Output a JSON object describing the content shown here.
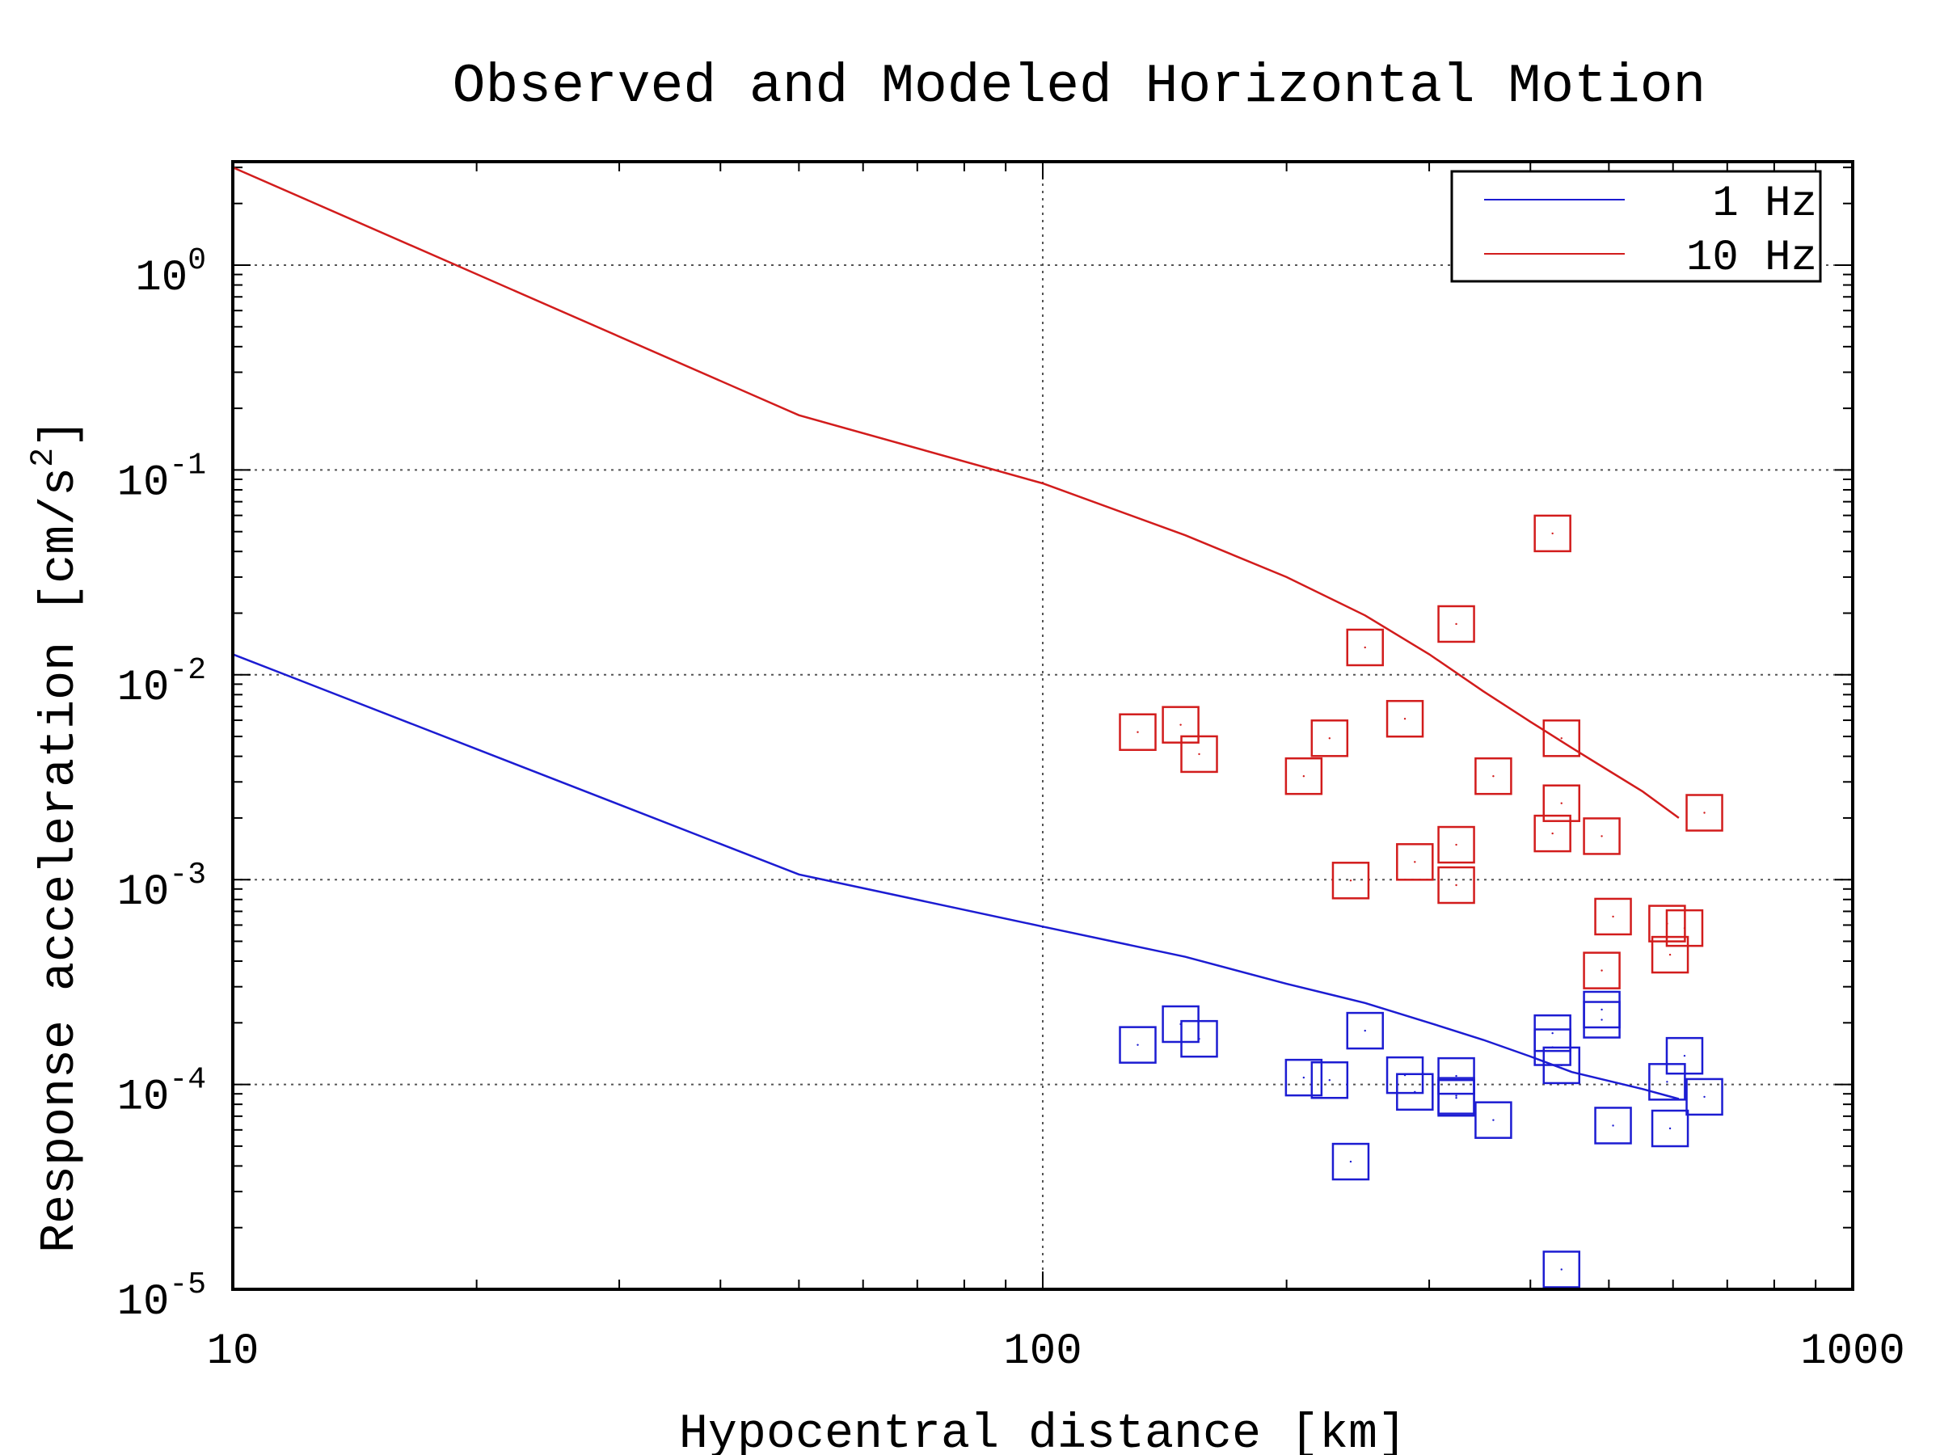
{
  "chart_data": {
    "type": "line",
    "title": "Observed and Modeled Horizontal Motion",
    "xlabel": "Hypocentral distance [km]",
    "ylabel": "Response acceleration [cm/s",
    "ylabel_sup": "2",
    "ylabel_suffix": "]",
    "xscale": "log",
    "yscale": "log",
    "xlim": [
      10,
      1000
    ],
    "ylim": [
      1e-05,
      3.2
    ],
    "x_ticks": [
      10,
      100,
      1000
    ],
    "x_tick_labels": [
      "10",
      "100",
      "1000"
    ],
    "y_ticks": [
      1e-05,
      0.0001,
      0.001,
      0.01,
      0.1,
      1
    ],
    "y_tick_base": "10",
    "y_tick_exponents": [
      "-5",
      "-4",
      "-3",
      "-2",
      "-1",
      "0"
    ],
    "grid": true,
    "legend_position": "top-right",
    "series": [
      {
        "name": "1 Hz",
        "color": "#1c1cd2",
        "line": [
          [
            10,
            0.0126
          ],
          [
            50,
            0.00106
          ],
          [
            100,
            0.00059
          ],
          [
            150,
            0.00042
          ],
          [
            200,
            0.00031
          ],
          [
            250,
            0.00025
          ],
          [
            300,
            0.0002
          ],
          [
            350,
            0.000165
          ],
          [
            400,
            0.000137
          ],
          [
            450,
            0.000115
          ],
          [
            550,
            9.5e-05
          ],
          [
            610,
            8.5e-05
          ]
        ],
        "observed": [
          [
            131,
            0.000156
          ],
          [
            148,
            0.000197
          ],
          [
            156,
            0.000167
          ],
          [
            210,
            0.000108
          ],
          [
            226,
            0.000105
          ],
          [
            240,
            4.2e-05
          ],
          [
            250,
            0.000183
          ],
          [
            280,
            0.000111
          ],
          [
            288,
            9.2e-05
          ],
          [
            324,
            0.00011
          ],
          [
            324,
            8.8e-05
          ],
          [
            324,
            8.6e-05
          ],
          [
            360,
            6.7e-05
          ],
          [
            426,
            0.000178
          ],
          [
            426,
            0.000152
          ],
          [
            437,
            0.000124
          ],
          [
            437,
            1.25e-05
          ],
          [
            490,
            0.000232
          ],
          [
            490,
            0.000207
          ],
          [
            506,
            6.3e-05
          ],
          [
            590,
            0.000103
          ],
          [
            595,
            6.1e-05
          ],
          [
            620,
            0.000138
          ],
          [
            656,
            8.7e-05
          ]
        ]
      },
      {
        "name": "10 Hz",
        "color": "#d21c1c",
        "line": [
          [
            10,
            3.0
          ],
          [
            50,
            0.185
          ],
          [
            100,
            0.086
          ],
          [
            150,
            0.048
          ],
          [
            200,
            0.03
          ],
          [
            250,
            0.0195
          ],
          [
            300,
            0.0126
          ],
          [
            350,
            0.0083
          ],
          [
            400,
            0.0059
          ],
          [
            450,
            0.0044
          ],
          [
            500,
            0.0034
          ],
          [
            550,
            0.0027
          ],
          [
            610,
            0.002
          ]
        ],
        "observed": [
          [
            131,
            0.00525
          ],
          [
            148,
            0.0057
          ],
          [
            156,
            0.0041
          ],
          [
            210,
            0.0032
          ],
          [
            226,
            0.0049
          ],
          [
            240,
            0.00099
          ],
          [
            250,
            0.0136
          ],
          [
            280,
            0.0061
          ],
          [
            288,
            0.00122
          ],
          [
            324,
            0.0177
          ],
          [
            324,
            0.00148
          ],
          [
            324,
            0.00094
          ],
          [
            360,
            0.0032
          ],
          [
            426,
            0.049
          ],
          [
            426,
            0.00168
          ],
          [
            437,
            0.00236
          ],
          [
            437,
            0.0049
          ],
          [
            490,
            0.00163
          ],
          [
            490,
            0.00036
          ],
          [
            506,
            0.00066
          ],
          [
            590,
            0.00061
          ],
          [
            595,
            0.00043
          ],
          [
            620,
            0.00058
          ],
          [
            656,
            0.00212
          ]
        ]
      }
    ]
  }
}
